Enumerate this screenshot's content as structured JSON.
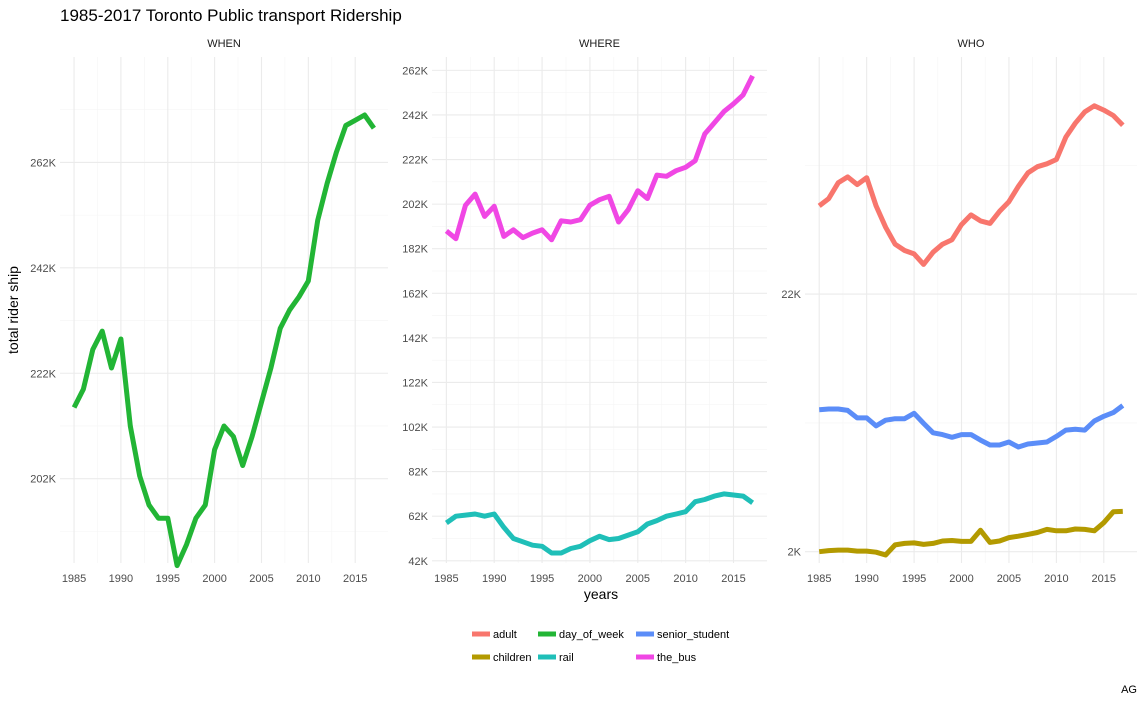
{
  "chart_data": {
    "type": "line",
    "title": "1985-2017 Toronto Public transport Ridership",
    "xlabel": "years",
    "ylabel": "total rider ship",
    "caption": "AG",
    "x": [
      1985,
      1986,
      1987,
      1988,
      1989,
      1990,
      1991,
      1992,
      1993,
      1994,
      1995,
      1996,
      1997,
      1998,
      1999,
      2000,
      2001,
      2002,
      2003,
      2004,
      2005,
      2006,
      2007,
      2008,
      2009,
      2010,
      2011,
      2012,
      2013,
      2014,
      2015,
      2016,
      2017
    ],
    "x_ticks": [
      1985,
      1990,
      1995,
      2000,
      2005,
      2010,
      2015
    ],
    "x_tick_labels": [
      "1985",
      "1990",
      "1995",
      "2000",
      "2005",
      "2010",
      "2015"
    ],
    "legend": {
      "placement": "bottom",
      "entries": [
        {
          "name": "adult",
          "color": "#F8766D"
        },
        {
          "name": "day_of_week",
          "color": "#22B535"
        },
        {
          "name": "senior_student",
          "color": "#5B8DF8"
        },
        {
          "name": "children",
          "color": "#B39A00"
        },
        {
          "name": "rail",
          "color": "#1FBFB8"
        },
        {
          "name": "the_bus",
          "color": "#F047E4"
        }
      ]
    },
    "panels": [
      {
        "strip": "WHEN",
        "scale": "linear",
        "ylim": [
          186000,
          282000
        ],
        "y_ticks": [
          202000,
          222000,
          242000,
          262000
        ],
        "y_tick_labels": [
          "202K",
          "222K",
          "242K",
          "262K"
        ],
        "series": [
          {
            "name": "day_of_week",
            "color": "#22B535",
            "values": [
              215500,
              219000,
              226500,
              230000,
              223000,
              228500,
              212000,
              202500,
              197000,
              194500,
              194500,
              185500,
              189500,
              194500,
              197000,
              207500,
              212000,
              210000,
              204500,
              210000,
              216500,
              223000,
              230500,
              234000,
              236500,
              239500,
              251000,
              258000,
              264000,
              269000,
              270000,
              271000,
              268500
            ]
          }
        ]
      },
      {
        "strip": "WHERE",
        "scale": "linear",
        "ylim": [
          41000,
          268000
        ],
        "y_ticks": [
          42000,
          62000,
          82000,
          102000,
          122000,
          142000,
          162000,
          182000,
          202000,
          222000,
          242000,
          262000
        ],
        "y_tick_labels": [
          "42K",
          "62K",
          "82K",
          "102K",
          "122K",
          "142K",
          "162K",
          "182K",
          "202K",
          "222K",
          "242K",
          "262K"
        ],
        "series": [
          {
            "name": "the_bus",
            "color": "#F047E4",
            "values": [
              190000,
              186500,
              201500,
              206500,
              196500,
              201000,
              187500,
              190500,
              187000,
              189000,
              190500,
              186000,
              194500,
              194000,
              195000,
              201500,
              204000,
              205500,
              194000,
              199500,
              208000,
              204500,
              215000,
              214500,
              217000,
              218500,
              221500,
              233500,
              238500,
              243500,
              247000,
              251000,
              259500
            ]
          },
          {
            "name": "rail",
            "color": "#1FBFB8",
            "values": [
              59000,
              62000,
              62500,
              63000,
              62000,
              63000,
              57000,
              52000,
              50500,
              49000,
              48500,
              45500,
              45500,
              47500,
              48500,
              51000,
              53000,
              51500,
              52000,
              53500,
              55000,
              58500,
              60000,
              62000,
              63000,
              64000,
              68500,
              69500,
              71000,
              72000,
              71500,
              71000,
              68000
            ]
          }
        ]
      },
      {
        "strip": "WHO",
        "scale": "log10",
        "ylim": [
          1800,
          200000
        ],
        "y_ticks": [
          2000,
          22000
        ],
        "y_tick_labels": [
          "2K",
          "22K"
        ],
        "series": [
          {
            "name": "adult",
            "color": "#F8766D",
            "values": [
              50000,
              53500,
              62000,
              65500,
              61000,
              65000,
              50000,
              41000,
              35000,
              33000,
              32000,
              29000,
              32500,
              35000,
              36500,
              42000,
              46000,
              43500,
              42500,
              47500,
              52000,
              60000,
              68000,
              72000,
              74000,
              77000,
              95000,
              108000,
              120000,
              127000,
              122000,
              116000,
              106000
            ]
          },
          {
            "name": "senior_student",
            "color": "#5B8DF8",
            "values": [
              7500,
              7550,
              7550,
              7450,
              6950,
              6950,
              6450,
              6800,
              6900,
              6900,
              7250,
              6600,
              6050,
              5950,
              5800,
              5950,
              5950,
              5650,
              5400,
              5400,
              5550,
              5300,
              5450,
              5500,
              5550,
              5850,
              6200,
              6250,
              6200,
              6750,
              7050,
              7300,
              7800
            ]
          },
          {
            "name": "children",
            "color": "#B39A00",
            "values": [
              2000,
              2020,
              2030,
              2030,
              2010,
              2010,
              1990,
              1940,
              2130,
              2160,
              2170,
              2140,
              2160,
              2210,
              2220,
              2200,
              2200,
              2440,
              2180,
              2210,
              2280,
              2310,
              2350,
              2390,
              2460,
              2430,
              2430,
              2470,
              2460,
              2430,
              2620,
              2900,
              2910
            ]
          }
        ]
      }
    ]
  }
}
